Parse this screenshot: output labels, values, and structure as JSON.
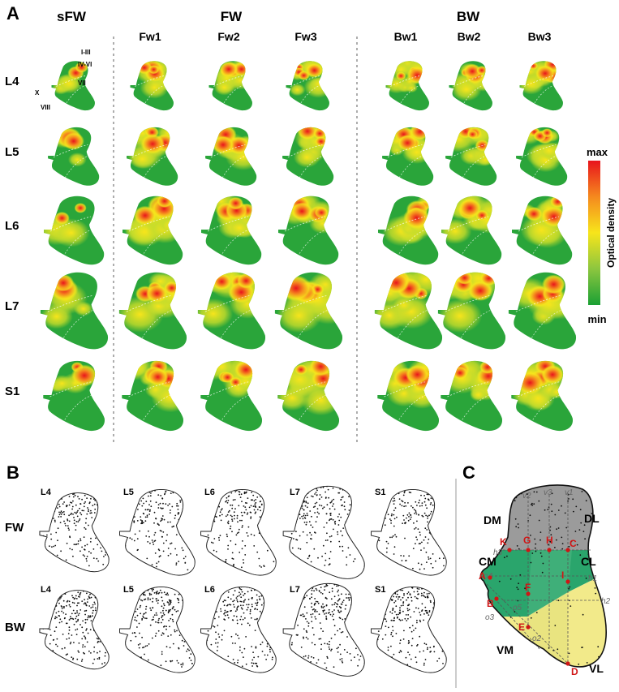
{
  "panel_a": {
    "label": "A",
    "groups": [
      "sFW",
      "FW",
      "BW"
    ],
    "columns": [
      "Fw1",
      "Fw2",
      "Fw3",
      "Bw1",
      "Bw2",
      "Bw3"
    ],
    "rows": [
      "L4",
      "L5",
      "L6",
      "L7",
      "S1"
    ],
    "laminae": [
      "I-III",
      "IV-VI",
      "VII",
      "X",
      "VIII"
    ],
    "colorbar": {
      "max": "max",
      "min": "min",
      "label": "Optical density",
      "top_color": "#e8141c",
      "mid_color": "#f7e51b",
      "bottom_color": "#1aa034"
    }
  },
  "panel_b": {
    "label": "B",
    "rows": [
      "FW",
      "BW"
    ],
    "columns": [
      "L4",
      "L5",
      "L6",
      "L7",
      "S1"
    ]
  },
  "panel_c": {
    "label": "C",
    "regions": [
      "DM",
      "DL",
      "CM",
      "CL",
      "VM",
      "VL"
    ],
    "vertical_lines": [
      "v2",
      "v3",
      "v1"
    ],
    "horizontal_lines": [
      "h3",
      "h1",
      "h2"
    ],
    "oblique_lines": [
      "o4",
      "o5",
      "o3",
      "o2"
    ],
    "points": [
      "A",
      "B",
      "C",
      "D",
      "E",
      "F",
      "G",
      "H",
      "I",
      "K"
    ],
    "colors": {
      "dorsal": "#9b9b9b",
      "central": "#2aa56c",
      "ventral": "#f2ea8a",
      "points": "#d01515"
    }
  }
}
